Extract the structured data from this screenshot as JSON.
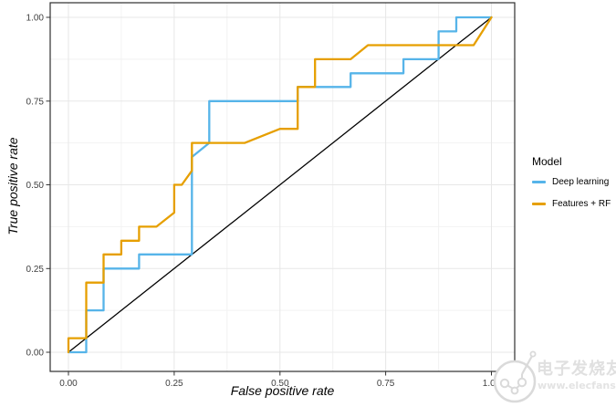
{
  "chart_data": {
    "type": "line",
    "subtype": "roc-step-curves",
    "title": "",
    "xlabel": "False positive rate",
    "ylabel": "True positive rate",
    "xlim": [
      0,
      1
    ],
    "ylim": [
      0,
      1
    ],
    "x_ticks": [
      0,
      0.25,
      0.5,
      0.75,
      1
    ],
    "x_tick_labels": [
      "0.00",
      "0.25",
      "0.50",
      "0.75",
      "1.00"
    ],
    "y_ticks": [
      0,
      0.25,
      0.5,
      0.75,
      1
    ],
    "y_tick_labels": [
      "0.00",
      "0.25",
      "0.50",
      "0.75",
      "1.00"
    ],
    "minor_ticks": [
      0.125,
      0.375,
      0.625,
      0.875
    ],
    "grid": "major+minor",
    "legend_position": "right",
    "legend_title": "Model",
    "reference_line": {
      "type": "diagonal",
      "from": [
        0,
        0
      ],
      "to": [
        1,
        1
      ],
      "color": "#000000"
    },
    "series": [
      {
        "name": "Deep learning",
        "color": "#56B4E9",
        "points": [
          [
            0,
            0
          ],
          [
            0.042,
            0
          ],
          [
            0.042,
            0.125
          ],
          [
            0.083,
            0.125
          ],
          [
            0.083,
            0.25
          ],
          [
            0.167,
            0.25
          ],
          [
            0.167,
            0.292
          ],
          [
            0.292,
            0.292
          ],
          [
            0.292,
            0.583
          ],
          [
            0.333,
            0.625
          ],
          [
            0.333,
            0.75
          ],
          [
            0.542,
            0.75
          ],
          [
            0.542,
            0.792
          ],
          [
            0.667,
            0.792
          ],
          [
            0.667,
            0.833
          ],
          [
            0.792,
            0.833
          ],
          [
            0.792,
            0.875
          ],
          [
            0.875,
            0.875
          ],
          [
            0.875,
            0.958
          ],
          [
            0.917,
            0.958
          ],
          [
            0.917,
            1
          ],
          [
            1,
            1
          ]
        ]
      },
      {
        "name": "Features + RF",
        "color": "#E69F00",
        "points": [
          [
            0,
            0
          ],
          [
            0,
            0.042
          ],
          [
            0.042,
            0.042
          ],
          [
            0.042,
            0.208
          ],
          [
            0.083,
            0.208
          ],
          [
            0.083,
            0.292
          ],
          [
            0.125,
            0.292
          ],
          [
            0.125,
            0.333
          ],
          [
            0.167,
            0.333
          ],
          [
            0.167,
            0.375
          ],
          [
            0.208,
            0.375
          ],
          [
            0.25,
            0.417
          ],
          [
            0.25,
            0.5
          ],
          [
            0.268,
            0.5
          ],
          [
            0.292,
            0.542
          ],
          [
            0.292,
            0.625
          ],
          [
            0.417,
            0.625
          ],
          [
            0.5,
            0.667
          ],
          [
            0.542,
            0.667
          ],
          [
            0.542,
            0.792
          ],
          [
            0.583,
            0.792
          ],
          [
            0.583,
            0.875
          ],
          [
            0.667,
            0.875
          ],
          [
            0.708,
            0.917
          ],
          [
            0.958,
            0.917
          ],
          [
            1,
            1
          ]
        ]
      }
    ]
  },
  "watermark": {
    "brand": "电子发烧友",
    "url": "www.elecfans.com",
    "color": "#e0e0e0"
  }
}
